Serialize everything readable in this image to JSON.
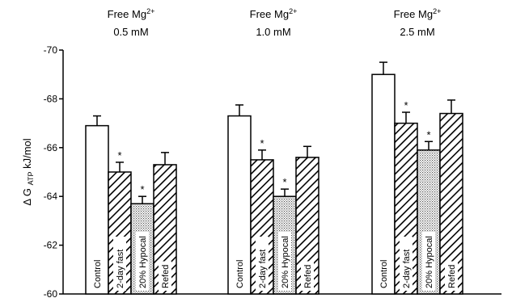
{
  "chart_data": {
    "type": "bar",
    "ylabel_prefix": "Δ G",
    "ylabel_sub": "ATP",
    "ylabel_suffix": " kJ/mol",
    "ylim": [
      -60,
      -70
    ],
    "yticks": [
      "-70",
      "-68",
      "-66",
      "-64",
      "-62",
      "-60"
    ],
    "ytick_values": [
      -70,
      -68,
      -66,
      -64,
      -62,
      -60
    ],
    "significance_mark": "*",
    "groups": [
      {
        "title_line1": "Free Mg",
        "title_sup": "2+",
        "title_line2": "0.5 mM",
        "bars": [
          {
            "label": "Control",
            "value": -66.9,
            "error": 0.4,
            "pattern": "white",
            "significant": false
          },
          {
            "label": "2-day fast",
            "value": -65.0,
            "error": 0.4,
            "pattern": "hatch",
            "significant": true
          },
          {
            "label": "20% Hypocal",
            "value": -63.7,
            "error": 0.3,
            "pattern": "dots",
            "significant": true
          },
          {
            "label": "Refed",
            "value": -65.3,
            "error": 0.5,
            "pattern": "hatch",
            "significant": false
          }
        ]
      },
      {
        "title_line1": "Free Mg",
        "title_sup": "2+",
        "title_line2": "1.0 mM",
        "bars": [
          {
            "label": "Control",
            "value": -67.3,
            "error": 0.45,
            "pattern": "white",
            "significant": false
          },
          {
            "label": "2-day fast",
            "value": -65.5,
            "error": 0.4,
            "pattern": "hatch",
            "significant": true
          },
          {
            "label": "20% Hypocal",
            "value": -64.0,
            "error": 0.3,
            "pattern": "dots",
            "significant": true
          },
          {
            "label": "Refed",
            "value": -65.6,
            "error": 0.45,
            "pattern": "hatch",
            "significant": false
          }
        ]
      },
      {
        "title_line1": "Free Mg",
        "title_sup": "2+",
        "title_line2": "2.5 mM",
        "bars": [
          {
            "label": "Control",
            "value": -69.0,
            "error": 0.5,
            "pattern": "white",
            "significant": false
          },
          {
            "label": "2-day fast",
            "value": -67.0,
            "error": 0.45,
            "pattern": "hatch",
            "significant": true
          },
          {
            "label": "20% Hypocal",
            "value": -65.9,
            "error": 0.35,
            "pattern": "dots",
            "significant": true
          },
          {
            "label": "Refed",
            "value": -67.4,
            "error": 0.55,
            "pattern": "hatch",
            "significant": false
          }
        ]
      }
    ]
  }
}
